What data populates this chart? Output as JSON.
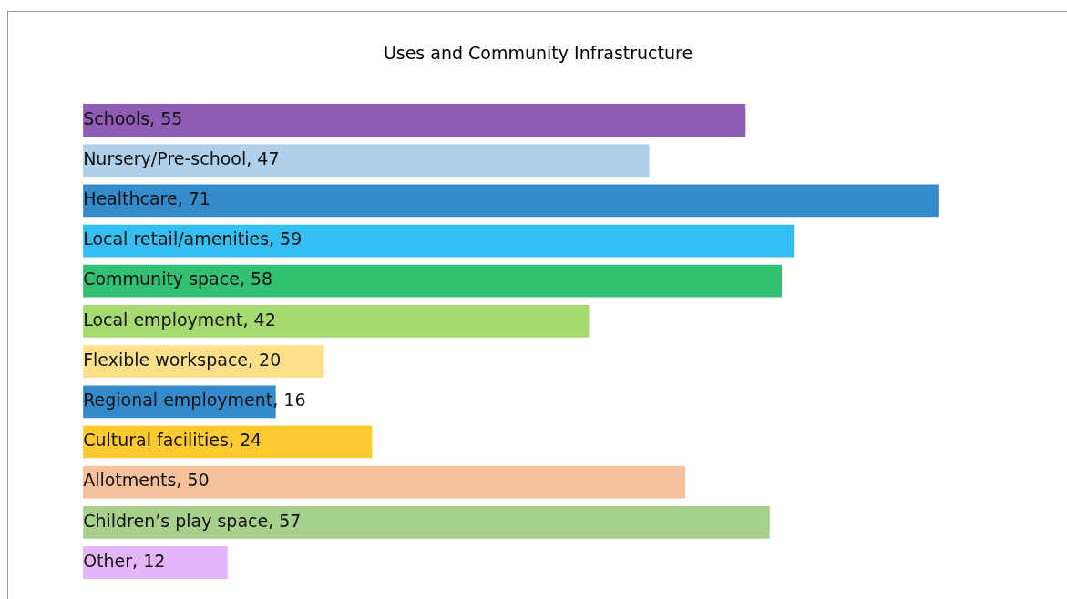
{
  "chart_data": {
    "type": "bar",
    "orientation": "horizontal",
    "title": "Uses and Community Infrastructure",
    "categories": [
      null,
      null,
      null,
      null,
      null,
      null,
      null,
      null,
      null,
      null,
      null,
      null
    ],
    "value_labels": [
      "Schools, 55",
      "Nursery/Pre-school, 47",
      "Healthcare, 71",
      "Local retail/amenities, 59",
      "Community space, 58",
      "Local employment, 42",
      "Flexible workspace, 20",
      "Regional employment, 16",
      "Cultural facilities, 24",
      "Allotments, 50",
      "Children’s play space, 57",
      "Other, 12"
    ],
    "values": [
      55,
      47,
      71,
      59,
      58,
      42,
      20,
      16,
      24,
      50,
      57,
      12
    ],
    "colors": [
      "#8e5bb5",
      "#afd0ea",
      "#338bcc",
      "#34bef2",
      "#33c073",
      "#a6d96f",
      "#fee08b",
      "#338bcc",
      "#ffca2f",
      "#f5c09a",
      "#a8d08d",
      "#e5b5f9"
    ],
    "tick_labels": false
  }
}
